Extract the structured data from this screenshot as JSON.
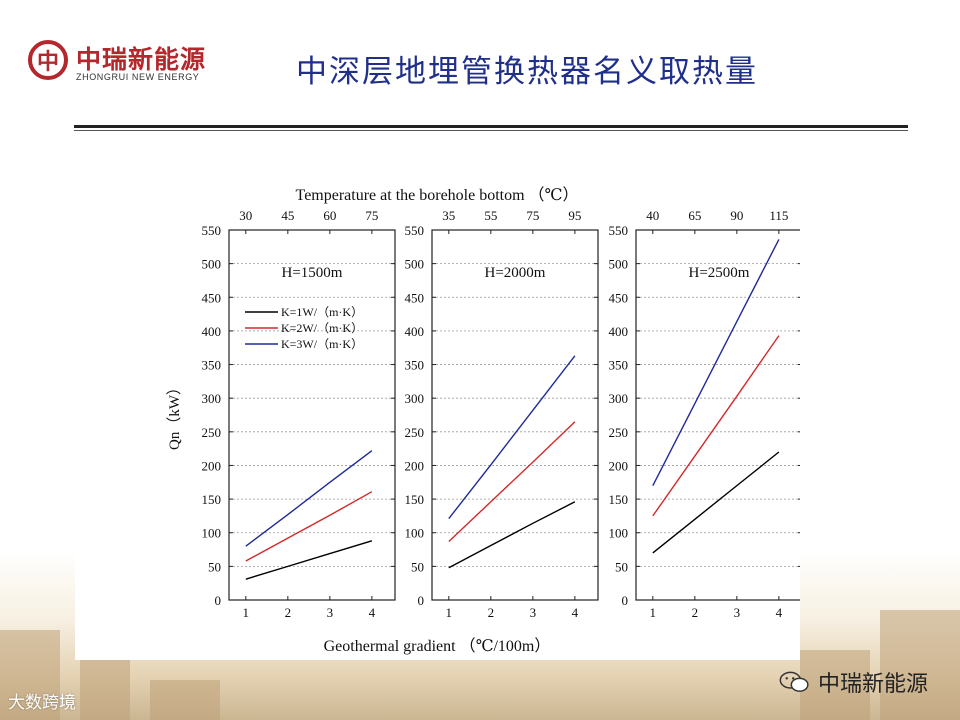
{
  "header": {
    "logo_mark": "中",
    "logo_cn": "中瑞新能源",
    "logo_en": "ZHONGRUI NEW ENERGY",
    "title": "中深层地埋管换热器名义取热量"
  },
  "footer": {
    "left_watermark": "大数跨境",
    "right_watermark": "中瑞新能源"
  },
  "chart_data": {
    "type": "line",
    "top_axis_title": "Temperature at the borehole bottom （℃）",
    "xlabel": "Geothermal gradient （℃/100m）",
    "ylabel": "Qn（kW）",
    "x": [
      1,
      2,
      3,
      4
    ],
    "x_ticks": [
      "1",
      "2",
      "3",
      "4"
    ],
    "xlim": [
      0.6,
      4.55
    ],
    "ylim": [
      0,
      550
    ],
    "y_ticks": [
      0,
      50,
      100,
      150,
      200,
      250,
      300,
      350,
      400,
      450,
      500,
      550
    ],
    "grid": "horizontal-dotted",
    "legend_placement": "upper-left of first panel",
    "series_colors": {
      "K=1W/（m·K）": "#000000",
      "K=2W/（m·K）": "#d22a2a",
      "K=3W/（m·K）": "#1f2a9a"
    },
    "panels": [
      {
        "label": "H=1500m",
        "top_ticks": [
          "30",
          "45",
          "60",
          "75"
        ],
        "series": [
          {
            "name": "K=1W/（m·K）",
            "values": [
              31,
              50,
              69,
              88
            ]
          },
          {
            "name": "K=2W/（m·K）",
            "values": [
              58,
              92,
              126,
              161
            ]
          },
          {
            "name": "K=3W/（m·K）",
            "values": [
              80,
              127,
              175,
              222
            ]
          }
        ]
      },
      {
        "label": "H=2000m",
        "top_ticks": [
          "35",
          "55",
          "75",
          "95"
        ],
        "series": [
          {
            "name": "K=1W/（m·K）",
            "values": [
              48,
              81,
              114,
              146
            ]
          },
          {
            "name": "K=2W/（m·K）",
            "values": [
              87,
              146,
              205,
              265
            ]
          },
          {
            "name": "K=3W/（m·K）",
            "values": [
              121,
              201,
              282,
              363
            ]
          }
        ]
      },
      {
        "label": "H=2500m",
        "top_ticks": [
          "40",
          "65",
          "90",
          "115"
        ],
        "series": [
          {
            "name": "K=1W/（m·K）",
            "values": [
              70,
              120,
              170,
              220
            ]
          },
          {
            "name": "K=2W/（m·K）",
            "values": [
              125,
              214,
              303,
              393
            ]
          },
          {
            "name": "K=3W/（m·K）",
            "values": [
              170,
              292,
              414,
              536
            ]
          }
        ]
      }
    ]
  }
}
